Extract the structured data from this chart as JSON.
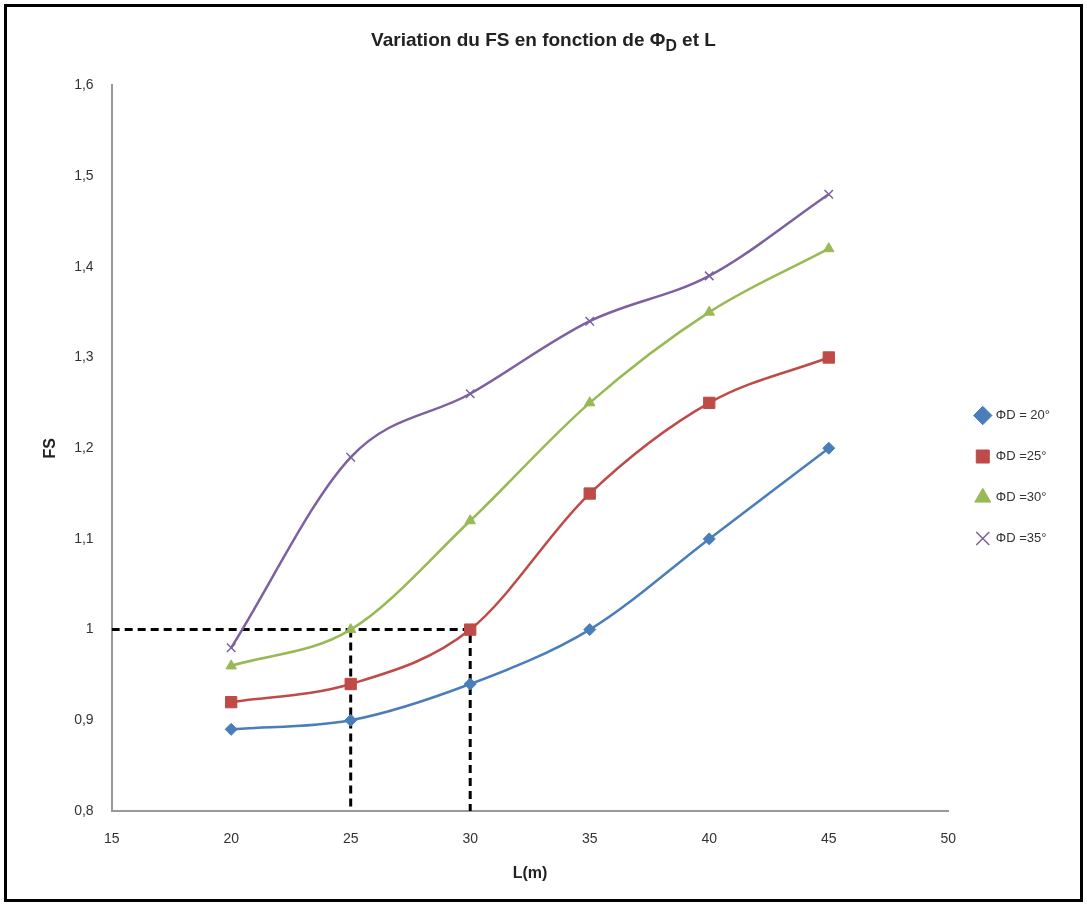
{
  "chart_data": {
    "type": "line",
    "title": "Variation du FS en fonction de Φ$_{D}$ et L",
    "xlabel": "L(m)",
    "ylabel": "FS",
    "x": [
      20,
      25,
      30,
      35,
      40,
      45
    ],
    "series": [
      {
        "name": "ΦD = 20°",
        "color": "#4a7ebb",
        "marker": "diamond",
        "values": [
          0.89,
          0.9,
          0.94,
          1.0,
          1.1,
          1.2
        ]
      },
      {
        "name": "ΦD =25°",
        "color": "#be4b48",
        "marker": "square",
        "values": [
          0.92,
          0.94,
          1.0,
          1.15,
          1.25,
          1.3
        ]
      },
      {
        "name": "ΦD =30°",
        "color": "#98b954",
        "marker": "triangle",
        "values": [
          0.96,
          1.0,
          1.12,
          1.25,
          1.35,
          1.42
        ]
      },
      {
        "name": "ΦD =35°",
        "color": "#7d60a0",
        "marker": "cross",
        "values": [
          0.98,
          1.19,
          1.26,
          1.34,
          1.39,
          1.48
        ]
      },
      {
        "color": "#000000",
        "marker": "none",
        "line_style": "dashed",
        "x": [
          15,
          30,
          30
        ],
        "values": [
          1,
          1,
          0.8
        ]
      },
      {
        "color": "#000000",
        "marker": "none",
        "line_style": "dashed",
        "x": [
          25,
          25
        ],
        "values": [
          1,
          0.8
        ]
      }
    ],
    "xlim": [
      15,
      50
    ],
    "xticks": [
      15,
      20,
      25,
      30,
      35,
      40,
      45,
      50
    ],
    "ylim": [
      0.8,
      1.6
    ],
    "yticks": [
      {
        "value": 0.8,
        "label": "0,8"
      },
      {
        "value": 0.9,
        "label": "0,9"
      },
      1,
      {
        "value": 1.1,
        "label": "1,1"
      },
      {
        "value": 1.2,
        "label": "1,2"
      },
      {
        "value": 1.3,
        "label": "1,3"
      },
      {
        "value": 1.4,
        "label": "1,4"
      },
      {
        "value": 1.5,
        "label": "1,5"
      },
      {
        "value": 1.6,
        "label": "1,6"
      }
    ],
    "grid": false,
    "legend": "right"
  }
}
